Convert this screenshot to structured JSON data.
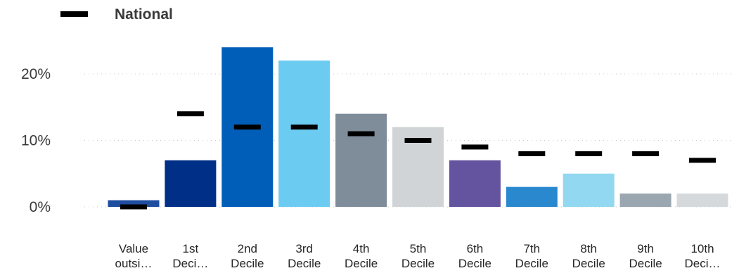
{
  "chart_data": {
    "type": "bar",
    "categories": [
      [
        "Value",
        "outsi…"
      ],
      [
        "1st",
        "Deci…"
      ],
      [
        "2nd",
        "Decile"
      ],
      [
        "3rd",
        "Decile"
      ],
      [
        "4th",
        "Decile"
      ],
      [
        "5th",
        "Decile"
      ],
      [
        "6th",
        "Decile"
      ],
      [
        "7th",
        "Decile"
      ],
      [
        "8th",
        "Decile"
      ],
      [
        "9th",
        "Decile"
      ],
      [
        "10th",
        "Deci…"
      ]
    ],
    "values": [
      1,
      7,
      24,
      22,
      14,
      12,
      7,
      3,
      5,
      2,
      2
    ],
    "bar_colors": [
      "#1f4ea0",
      "#002f87",
      "#005eb8",
      "#6ccbf0",
      "#7f8c99",
      "#d1d4d6",
      "#6454a0",
      "#2a88cf",
      "#91d8f0",
      "#9aa6b0",
      "#d5d9dc"
    ],
    "series": [
      {
        "name": "National",
        "type": "marker",
        "color": "#000000",
        "values": [
          0,
          14,
          12,
          12,
          11,
          10,
          9,
          8,
          8,
          8,
          7
        ]
      }
    ],
    "ylim": [
      0,
      25
    ],
    "yticks": [
      0,
      10,
      20
    ],
    "ytick_labels": [
      "0%",
      "10%",
      "20%"
    ],
    "grid": true,
    "legend_position": "top-left",
    "title": "",
    "xlabel": "",
    "ylabel": ""
  }
}
